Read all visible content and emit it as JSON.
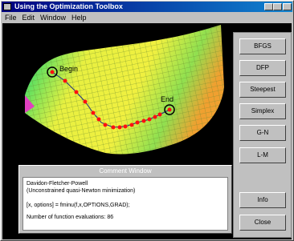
{
  "window": {
    "title": "Using the Optimization Toolbox"
  },
  "menu": [
    "File",
    "Edit",
    "Window",
    "Help"
  ],
  "plot": {
    "start_label": "Begin",
    "end_label": "End"
  },
  "buttons": [
    "BFGS",
    "DFP",
    "Steepest",
    "Simplex",
    "G-N",
    "L-M",
    "Info",
    "Close"
  ],
  "comment": {
    "title": "Comment Window",
    "lines": [
      "Davidon-Fletcher-Powell",
      "(Unconstrained quasi-Newton minimization)",
      "[x, options] = fminu(f,x,OPTIONS,GRAD);",
      "Number of function evaluations: 86"
    ]
  }
}
